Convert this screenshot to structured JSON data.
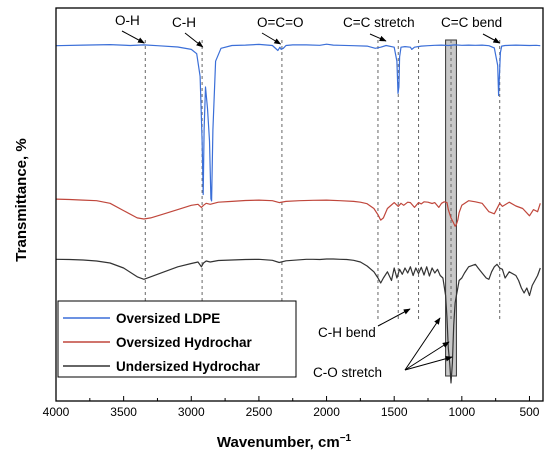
{
  "chart_data": {
    "type": "line",
    "title": "",
    "xlabel": "Wavenumber, cm",
    "xlabel_sup": "−1",
    "ylabel": "Transmittance, %",
    "xlim": [
      4000,
      400
    ],
    "x_reversed": true,
    "x_ticks": [
      4000,
      3500,
      3000,
      2500,
      2000,
      1500,
      1000,
      500
    ],
    "y_ticks_shown": false,
    "legend_position": "bottom-left",
    "series": [
      {
        "name": "Oversized LDPE",
        "color": "#3b6fd8",
        "x": [
          4000,
          3800,
          3600,
          3450,
          3350,
          3250,
          3100,
          3000,
          2960,
          2935,
          2920,
          2912,
          2905,
          2895,
          2880,
          2865,
          2855,
          2850,
          2840,
          2820,
          2780,
          2700,
          2600,
          2500,
          2400,
          2360,
          2345,
          2335,
          2320,
          2300,
          2250,
          2150,
          2050,
          2000,
          1950,
          1900,
          1800,
          1700,
          1640,
          1600,
          1560,
          1500,
          1480,
          1472,
          1465,
          1460,
          1450,
          1420,
          1380,
          1370,
          1350,
          1300,
          1250,
          1200,
          1150,
          1100,
          1050,
          1000,
          950,
          900,
          850,
          800,
          760,
          735,
          728,
          722,
          715,
          705,
          680,
          600,
          500,
          450,
          420
        ],
        "y": [
          99.2,
          99.5,
          99.7,
          99.3,
          99.6,
          99.2,
          98.6,
          97.5,
          95.5,
          85,
          55,
          30,
          60,
          80,
          70,
          55,
          28,
          27,
          60,
          92,
          98,
          99.3,
          99.5,
          99.8,
          99.3,
          97,
          98.5,
          97.5,
          98,
          99.3,
          99.6,
          99.6,
          99.4,
          99.9,
          99.5,
          99.4,
          99.2,
          99,
          98,
          98.5,
          99.3,
          98.5,
          92,
          77,
          80,
          94,
          98.5,
          98.8,
          98.5,
          97.5,
          98.5,
          99,
          99.2,
          99.4,
          99.5,
          99.3,
          99.6,
          99.4,
          99.5,
          99.4,
          99.5,
          99.2,
          98.2,
          90,
          76,
          85,
          96,
          99,
          99.3,
          99.5,
          99.3,
          99.4,
          99.2
        ]
      },
      {
        "name": "Oversized Hydrochar",
        "color": "#c0473c",
        "x": [
          4000,
          3900,
          3800,
          3700,
          3600,
          3500,
          3400,
          3350,
          3300,
          3200,
          3100,
          3000,
          2950,
          2925,
          2910,
          2890,
          2860,
          2800,
          2700,
          2600,
          2500,
          2400,
          2350,
          2300,
          2200,
          2100,
          2000,
          1900,
          1800,
          1750,
          1700,
          1650,
          1620,
          1600,
          1580,
          1550,
          1500,
          1470,
          1450,
          1430,
          1400,
          1380,
          1350,
          1320,
          1300,
          1280,
          1250,
          1220,
          1200,
          1170,
          1150,
          1130,
          1110,
          1100,
          1080,
          1060,
          1050,
          1040,
          1030,
          1020,
          1000,
          950,
          900,
          850,
          800,
          760,
          720,
          700,
          650,
          600,
          550,
          500,
          470,
          440,
          420
        ],
        "y": [
          99.5,
          99.3,
          99,
          98.7,
          97.5,
          94,
          90.5,
          90,
          90.5,
          92.5,
          94.5,
          96.5,
          97,
          95.5,
          96.5,
          97.5,
          97,
          98,
          98.4,
          98.8,
          99,
          98.7,
          97.8,
          98.4,
          98.7,
          98.9,
          99,
          98.7,
          98.4,
          98,
          97.3,
          95,
          92,
          89.5,
          90.5,
          95,
          97.8,
          96,
          97.5,
          96.5,
          98,
          97.8,
          95.5,
          97.8,
          97.2,
          98.2,
          98,
          97.4,
          97.8,
          95.5,
          97.5,
          98.2,
          97.8,
          94.5,
          90.5,
          88,
          86.5,
          87.5,
          89.5,
          93,
          96.5,
          98.7,
          98.2,
          97.5,
          93.5,
          92.5,
          97.5,
          96,
          98,
          96.2,
          95,
          91.5,
          94.5,
          93.5,
          97.5
        ]
      },
      {
        "name": "Undersized Hydrochar",
        "color": "#333333",
        "x": [
          4000,
          3900,
          3800,
          3700,
          3600,
          3500,
          3400,
          3350,
          3300,
          3200,
          3100,
          3000,
          2950,
          2925,
          2910,
          2890,
          2860,
          2800,
          2700,
          2600,
          2500,
          2400,
          2350,
          2300,
          2250,
          2200,
          2150,
          2100,
          2050,
          2000,
          1950,
          1900,
          1850,
          1800,
          1750,
          1700,
          1650,
          1620,
          1600,
          1580,
          1550,
          1520,
          1500,
          1480,
          1460,
          1440,
          1420,
          1400,
          1380,
          1360,
          1340,
          1320,
          1300,
          1280,
          1260,
          1240,
          1220,
          1200,
          1180,
          1160,
          1140,
          1120,
          1110,
          1100,
          1090,
          1080,
          1070,
          1060,
          1050,
          1040,
          1030,
          1020,
          1000,
          980,
          950,
          900,
          880,
          850,
          820,
          800,
          780,
          760,
          740,
          720,
          700,
          680,
          650,
          600,
          580,
          560,
          540,
          520,
          500,
          480,
          460,
          440,
          420
        ],
        "y": [
          99.5,
          99.4,
          99.2,
          98.8,
          98,
          96,
          92.5,
          91.5,
          92.5,
          94.5,
          96.5,
          97.8,
          98.4,
          96.5,
          98,
          98.8,
          98.4,
          99,
          99.2,
          99.4,
          99.5,
          99.1,
          98.2,
          98.9,
          99.1,
          99.3,
          99.5,
          99.5,
          99.4,
          99.6,
          99.6,
          99.5,
          99.4,
          99.1,
          98.4,
          96.8,
          94.5,
          92,
          90,
          92,
          94.5,
          91,
          96,
          92,
          95.5,
          93.5,
          96,
          94,
          96.5,
          93,
          96,
          93.8,
          96.3,
          93.2,
          96.5,
          92.8,
          96,
          94,
          95.5,
          93,
          92,
          85,
          76,
          64,
          58,
          50,
          58,
          73,
          82,
          85,
          88,
          91,
          92,
          94,
          96.5,
          97.5,
          96,
          94,
          92,
          91.5,
          94.5,
          96.5,
          97.5,
          96,
          95.5,
          92,
          94.5,
          93,
          91,
          88,
          86,
          88,
          85,
          89,
          91,
          93,
          96
        ]
      }
    ],
    "annotations": [
      {
        "text": "O-H",
        "x": 3340,
        "arrow": "down"
      },
      {
        "text": "C-H",
        "x": 2915,
        "arrow": "down"
      },
      {
        "text": "O=C=O",
        "x": 2340,
        "arrow": "down"
      },
      {
        "text": "C=C stretch",
        "x": 1620,
        "arrow": "down"
      },
      {
        "text": "C=C bend",
        "x": 720,
        "arrow": "down"
      },
      {
        "text": "C-H bend",
        "x": 1320,
        "arrow": "up-right"
      },
      {
        "text": "C-O stretch",
        "x": 1080,
        "arrow": "up-right"
      }
    ],
    "dashed_reference_lines_x": [
      3340,
      2920,
      2330,
      1620,
      1470,
      1320,
      1080,
      720
    ],
    "shaded_band_x": [
      1120,
      1040
    ]
  }
}
